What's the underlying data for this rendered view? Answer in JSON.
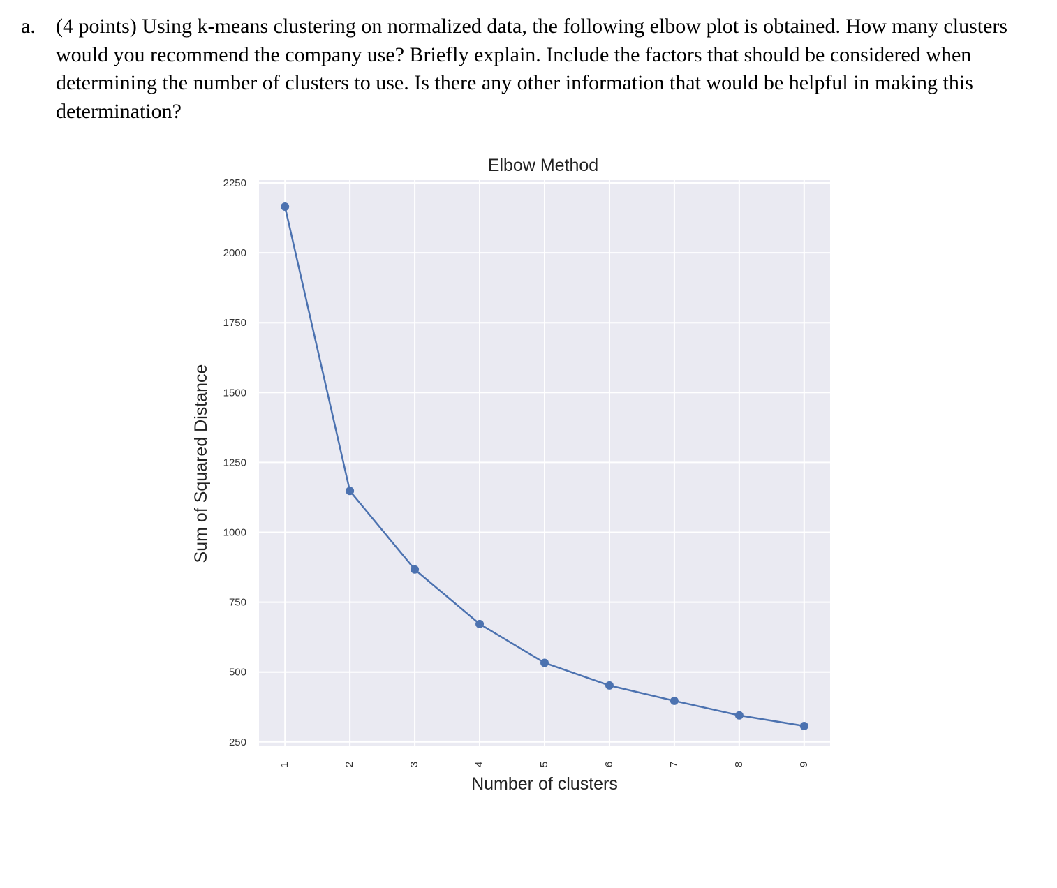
{
  "question": {
    "marker": "a.",
    "text": "(4 points) Using k-means clustering on normalized data, the following elbow plot is obtained. How many clusters would you recommend the company use? Briefly explain. Include the factors that should be considered when determining the number of clusters to use. Is there any other information that would be helpful in making this determination?"
  },
  "chart_data": {
    "type": "line",
    "title": "Elbow Method",
    "xlabel": "Number of clusters",
    "ylabel": "Sum of Squared Distance",
    "x": [
      1,
      2,
      3,
      4,
      5,
      6,
      7,
      8,
      9
    ],
    "series": [
      {
        "values": [
          2165,
          1148,
          867,
          672,
          533,
          452,
          397,
          345,
          307
        ]
      }
    ],
    "xticks": [
      "1",
      "2",
      "3",
      "4",
      "5",
      "6",
      "7",
      "8",
      "9"
    ],
    "yticks": [
      "250",
      "500",
      "750",
      "1000",
      "1250",
      "1500",
      "1750",
      "2000",
      "2250"
    ],
    "xlim": [
      0.6,
      9.4
    ],
    "ylim": [
      237,
      2260
    ],
    "grid": true,
    "markers": true,
    "line_color": "#4c72b0",
    "background_color": "#eaeaf2"
  }
}
